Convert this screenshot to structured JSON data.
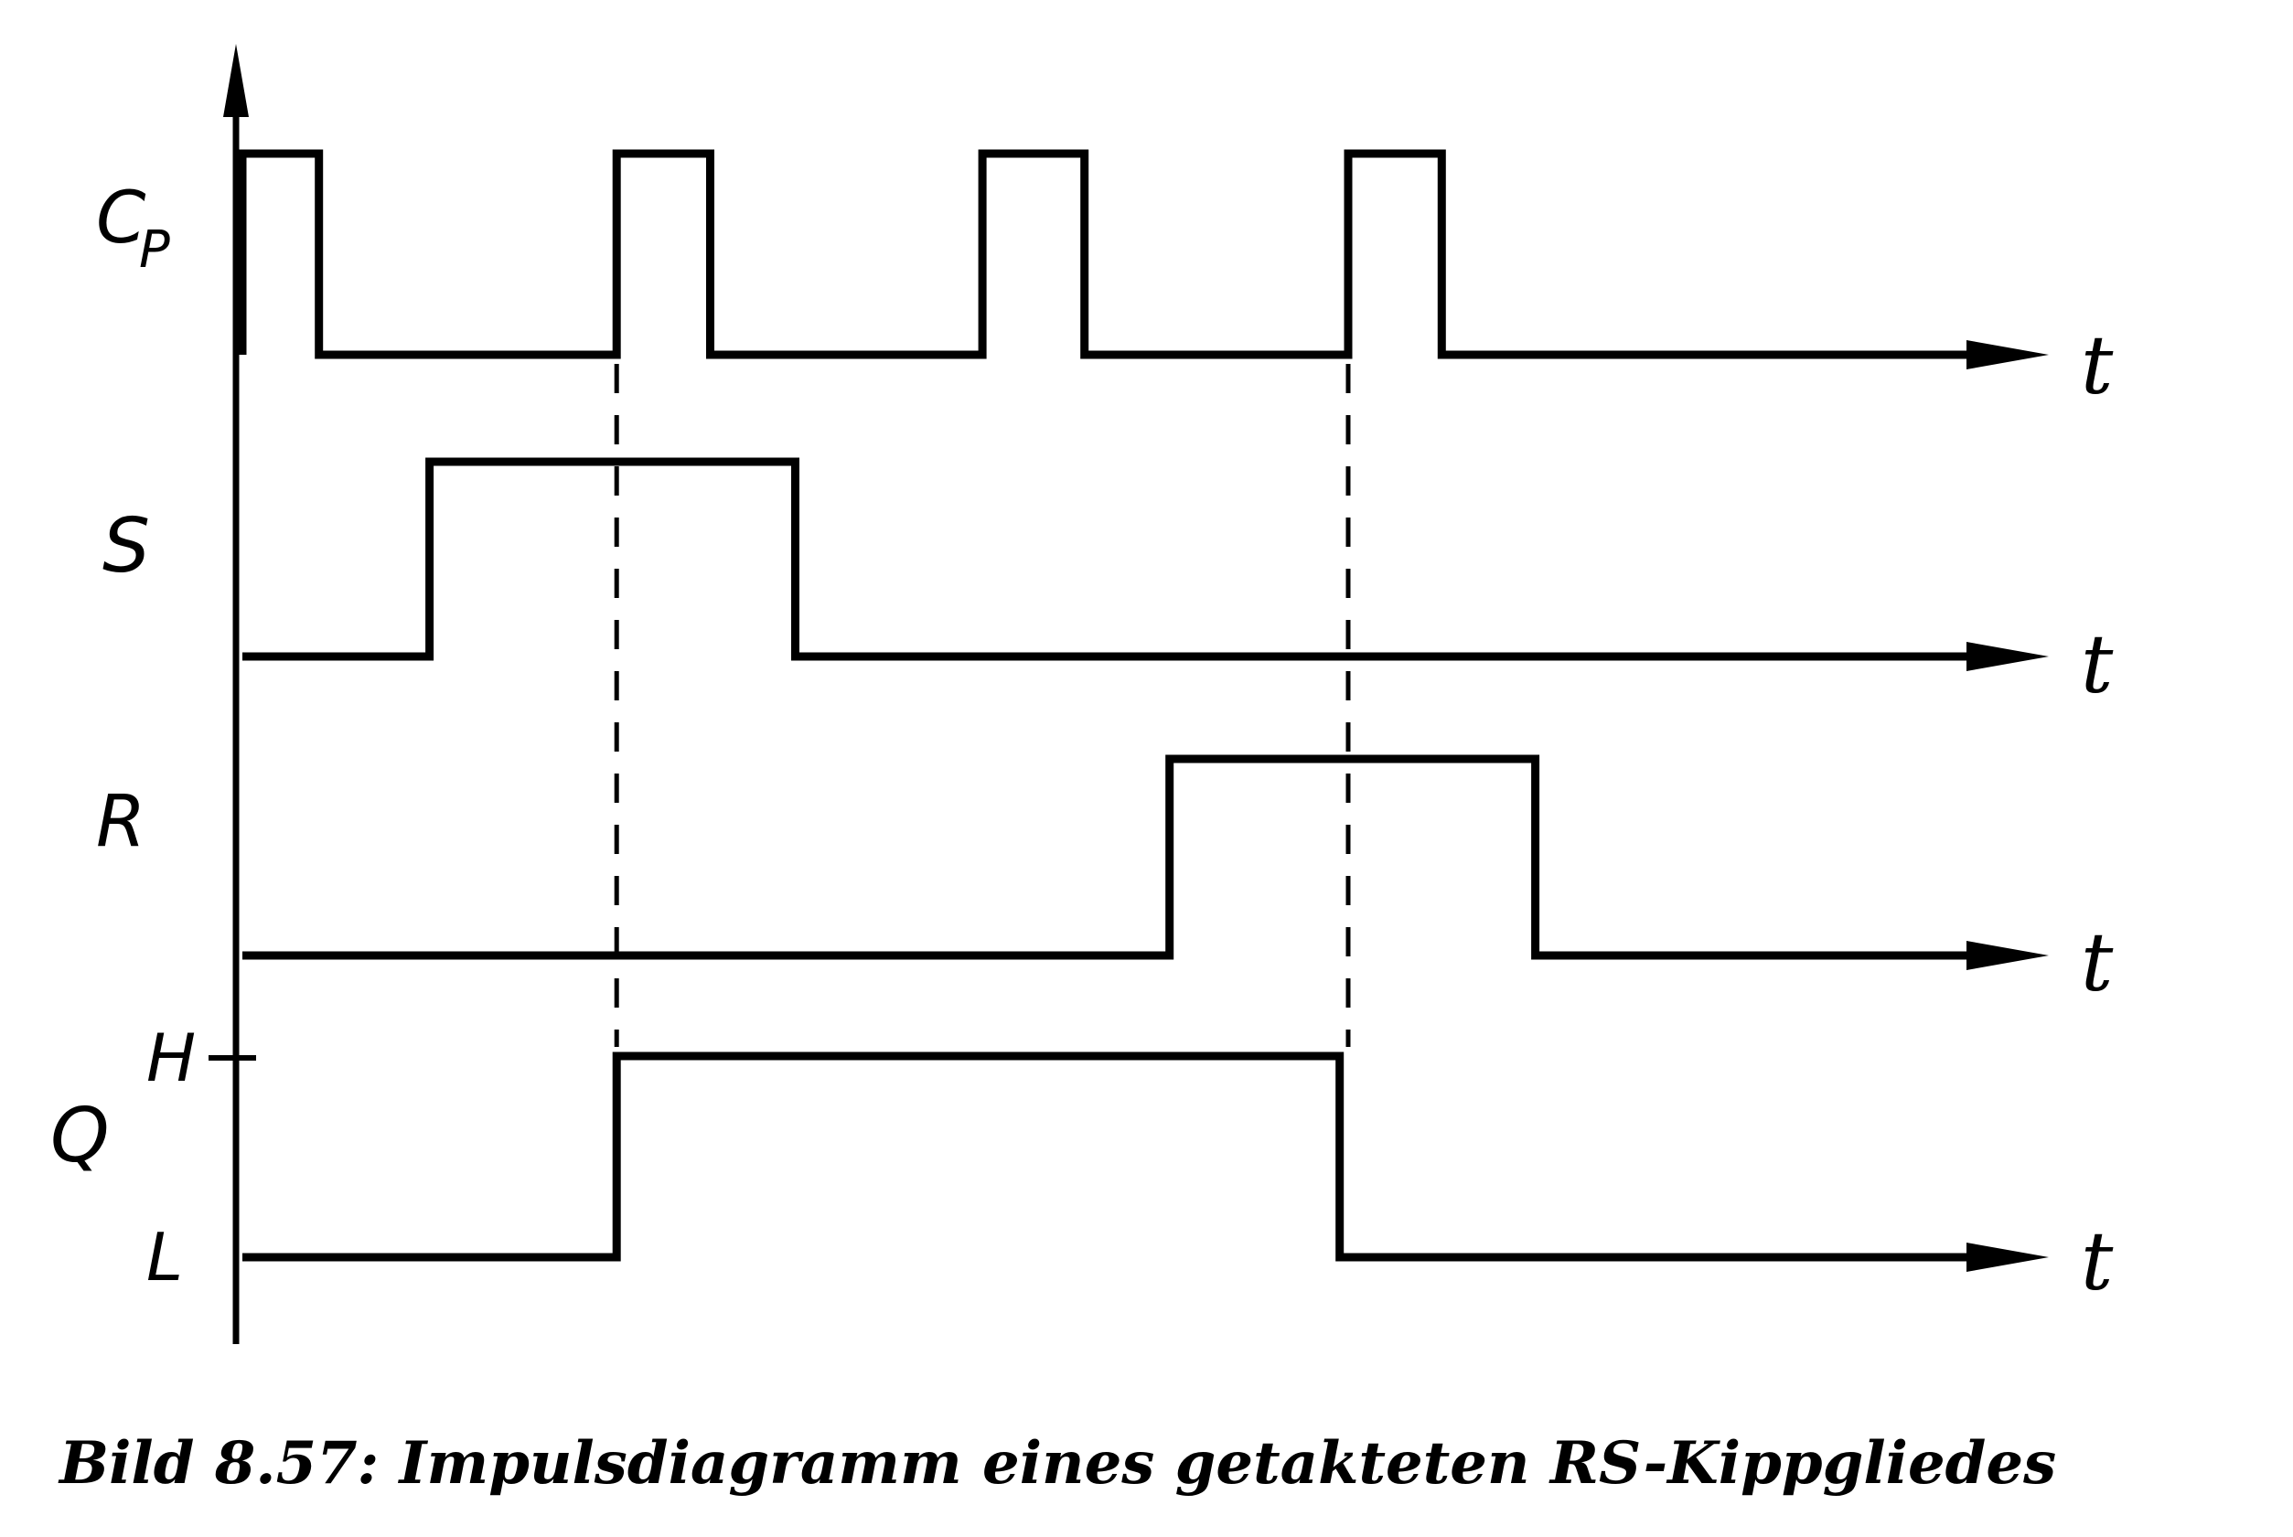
{
  "signals": [
    {
      "id": "cp",
      "label": "C",
      "label_sub": "P",
      "time_label": "t",
      "pulses": [
        [
          0,
          0.45
        ],
        [
          2.2,
          2.75
        ],
        [
          4.35,
          4.95
        ],
        [
          6.5,
          7.05
        ]
      ]
    },
    {
      "id": "s",
      "label": "S",
      "time_label": "t",
      "pulses": [
        [
          1.1,
          3.25
        ]
      ]
    },
    {
      "id": "r",
      "label": "R",
      "time_label": "t",
      "pulses": [
        [
          5.45,
          7.6
        ]
      ]
    },
    {
      "id": "q",
      "label": "Q",
      "level_high": "H",
      "level_low": "L",
      "time_label": "t",
      "pulses": [
        [
          2.2,
          6.45
        ]
      ]
    }
  ],
  "markers": [
    2.2,
    6.5
  ],
  "caption": "Bild 8.57: Impulsdiagramm eines getakteten RS-Kippgliedes"
}
